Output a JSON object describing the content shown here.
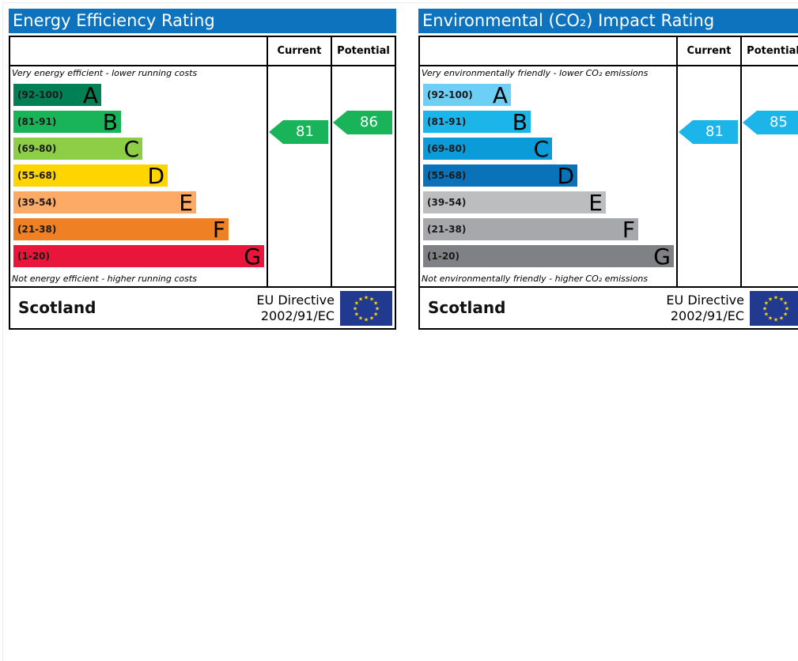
{
  "energy": {
    "title": "Energy Efficiency Rating",
    "current_header": "Current",
    "potential_header": "Potential",
    "top_caption": "Very energy efficient - lower running costs",
    "bottom_caption": "Not energy efficient - higher running costs",
    "bands": [
      {
        "range": "(92-100)",
        "letter": "A",
        "color": "#008054"
      },
      {
        "range": "(81-91)",
        "letter": "B",
        "color": "#19b459"
      },
      {
        "range": "(69-80)",
        "letter": "C",
        "color": "#8dce46"
      },
      {
        "range": "(55-68)",
        "letter": "D",
        "color": "#ffd500"
      },
      {
        "range": "(39-54)",
        "letter": "E",
        "color": "#fcaa65"
      },
      {
        "range": "(21-38)",
        "letter": "F",
        "color": "#ef8023"
      },
      {
        "range": "(1-20)",
        "letter": "G",
        "color": "#e9153b"
      }
    ],
    "current": {
      "value": "81",
      "band": "B",
      "color": "#19b459"
    },
    "potential": {
      "value": "86",
      "band": "B",
      "color": "#19b459"
    },
    "country": "Scotland",
    "directive_line1": "EU Directive",
    "directive_line2": "2002/91/EC"
  },
  "environment": {
    "title": "Environmental (CO₂) Impact Rating",
    "current_header": "Current",
    "potential_header": "Potential",
    "top_caption": "Very environmentally friendly - lower CO₂ emissions",
    "bottom_caption": "Not environmentally friendly - higher CO₂ emissions",
    "bands": [
      {
        "range": "(92-100)",
        "letter": "A",
        "color": "#6ecff6"
      },
      {
        "range": "(81-91)",
        "letter": "B",
        "color": "#1cb5ea"
      },
      {
        "range": "(69-80)",
        "letter": "C",
        "color": "#0b9bd8"
      },
      {
        "range": "(55-68)",
        "letter": "D",
        "color": "#0a72b8"
      },
      {
        "range": "(39-54)",
        "letter": "E",
        "color": "#bbbdbf"
      },
      {
        "range": "(21-38)",
        "letter": "F",
        "color": "#a6a8ab"
      },
      {
        "range": "(1-20)",
        "letter": "G",
        "color": "#808184"
      }
    ],
    "current": {
      "value": "81",
      "band": "B",
      "color": "#1cb5ea"
    },
    "potential": {
      "value": "85",
      "band": "B",
      "color": "#1cb5ea"
    },
    "country": "Scotland",
    "directive_line1": "EU Directive",
    "directive_line2": "2002/91/EC"
  }
}
